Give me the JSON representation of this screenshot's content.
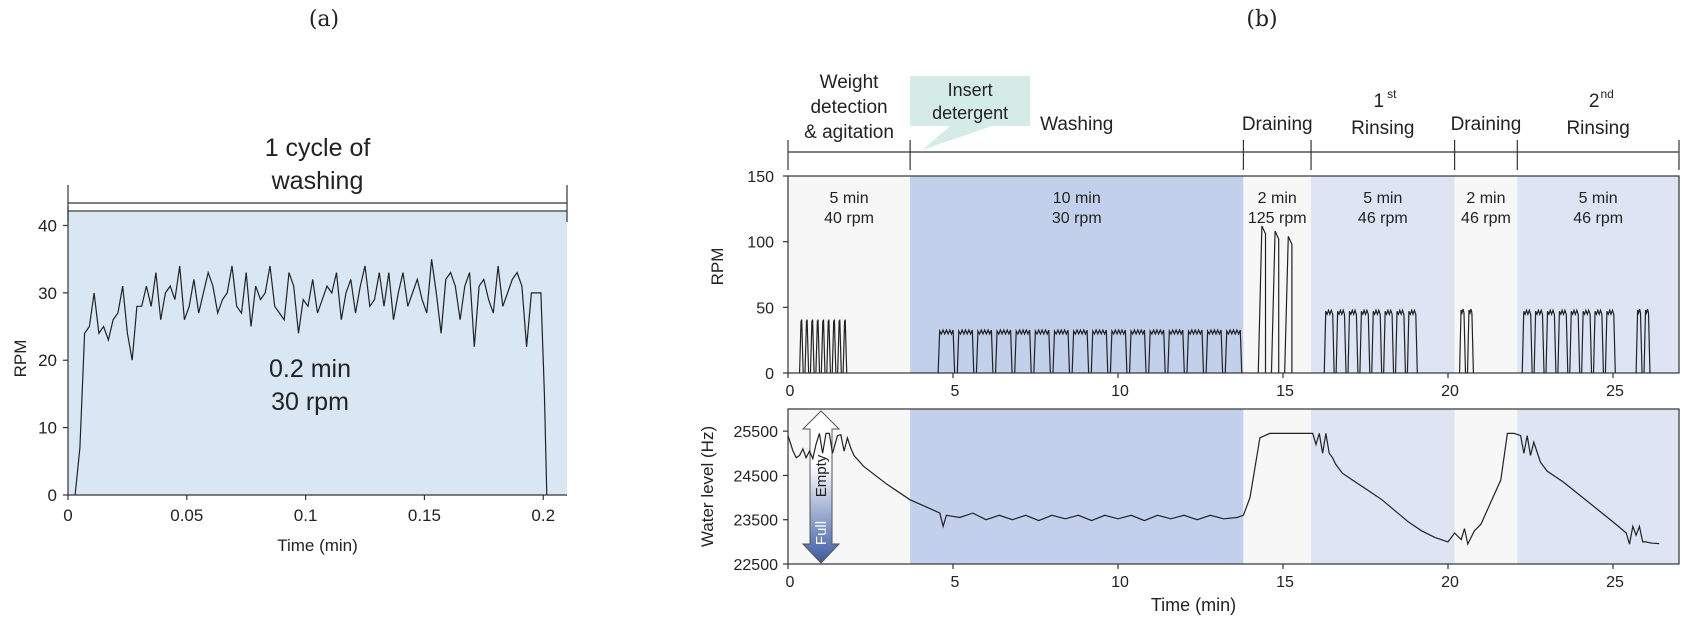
{
  "panel_a_label": "(a)",
  "panel_b_label": "(b)",
  "colors": {
    "panel_a_bg": "#d9e7f5",
    "washing_bg": "#c3d0ec",
    "rinsing_bg": "#dde4f4",
    "plain_bg": "#f7f7f7",
    "callout": "#d5ebe6",
    "arrow_top": "#ffffff",
    "arrow_bottom": "#3a5aa0"
  },
  "chart_data": [
    {
      "type": "line",
      "xlabel": "Time (min)",
      "ylabel": "RPM",
      "xlim": [
        0,
        0.21
      ],
      "ylim": [
        0,
        42
      ],
      "xticks": [
        "0",
        "0.05",
        "0.1",
        "0.15",
        "0.2"
      ],
      "xtick_values": [
        0,
        0.05,
        0.1,
        0.15,
        0.2
      ],
      "yticks": [
        "0",
        "10",
        "20",
        "30",
        "40"
      ],
      "ytick_values": [
        0,
        10,
        20,
        30,
        40
      ],
      "bracket_label": [
        "1 cycle of",
        "washing"
      ],
      "center_label": [
        "0.2 min",
        "30 rpm"
      ],
      "series": [
        {
          "x": [
            0.003,
            0.005,
            0.007,
            0.009,
            0.011,
            0.013,
            0.015,
            0.017,
            0.019,
            0.021,
            0.023,
            0.025,
            0.027,
            0.029,
            0.031,
            0.033,
            0.035,
            0.037,
            0.039,
            0.041,
            0.043,
            0.045,
            0.047,
            0.049,
            0.051,
            0.053,
            0.055,
            0.057,
            0.059,
            0.061,
            0.063,
            0.065,
            0.067,
            0.069,
            0.071,
            0.073,
            0.075,
            0.077,
            0.079,
            0.081,
            0.083,
            0.085,
            0.087,
            0.089,
            0.091,
            0.093,
            0.095,
            0.097,
            0.099,
            0.101,
            0.103,
            0.105,
            0.107,
            0.109,
            0.111,
            0.113,
            0.115,
            0.117,
            0.119,
            0.121,
            0.123,
            0.125,
            0.127,
            0.129,
            0.131,
            0.133,
            0.135,
            0.137,
            0.139,
            0.141,
            0.143,
            0.145,
            0.147,
            0.149,
            0.151,
            0.153,
            0.155,
            0.157,
            0.159,
            0.161,
            0.163,
            0.165,
            0.167,
            0.169,
            0.171,
            0.173,
            0.175,
            0.177,
            0.179,
            0.181,
            0.183,
            0.185,
            0.187,
            0.189,
            0.191,
            0.193,
            0.195,
            0.197,
            0.199,
            0.2005,
            0.2015
          ],
          "y": [
            0,
            7,
            24,
            25,
            30,
            24,
            25,
            23,
            26,
            27,
            31,
            24,
            20,
            28,
            28,
            31,
            28,
            33,
            26,
            30,
            31,
            29,
            34,
            26,
            28,
            32,
            27,
            30,
            33,
            31,
            27,
            29,
            30,
            34,
            28,
            27,
            33,
            25,
            31,
            29,
            30,
            34,
            28,
            27,
            26,
            33,
            31,
            24,
            29,
            28,
            32,
            27,
            29,
            31,
            30,
            33,
            26,
            30,
            32,
            27,
            31,
            34,
            28,
            29,
            33,
            28,
            33,
            26,
            30,
            33,
            28,
            30,
            32,
            29,
            27,
            35,
            30,
            24,
            32,
            33,
            31,
            26,
            31,
            33,
            22,
            31,
            32,
            29,
            27,
            34,
            28,
            30,
            32,
            33,
            31,
            22,
            30,
            30,
            30,
            15,
            0
          ]
        }
      ]
    },
    {
      "type": "bar",
      "ylabel": "RPM",
      "xlim": [
        0,
        27
      ],
      "ylim": [
        0,
        150
      ],
      "xticks": [
        "0",
        "5",
        "10",
        "15",
        "20",
        "25"
      ],
      "xtick_values": [
        0,
        5,
        10,
        15,
        20,
        25
      ],
      "yticks": [
        "0",
        "50",
        "100",
        "150"
      ],
      "ytick_values": [
        0,
        50,
        100,
        150
      ],
      "phases": [
        {
          "name": [
            "Weight",
            "detection",
            "& agitation"
          ],
          "start": 0,
          "end": 3.7,
          "shade": "plain",
          "duration": "5 min",
          "speed": "40 rpm"
        },
        {
          "name": [
            "Washing"
          ],
          "start": 3.7,
          "end": 13.8,
          "shade": "washing",
          "duration": "10 min",
          "speed": "30 rpm"
        },
        {
          "name": [
            "Draining"
          ],
          "start": 13.8,
          "end": 15.85,
          "shade": "plain",
          "duration": "2 min",
          "speed": "125 rpm"
        },
        {
          "name": [
            "1",
            "Rinsing"
          ],
          "sup": "st",
          "start": 15.85,
          "end": 20.2,
          "shade": "rinsing",
          "duration": "5 min",
          "speed": "46 rpm"
        },
        {
          "name": [
            "Draining"
          ],
          "start": 20.2,
          "end": 22.1,
          "shade": "plain",
          "duration": "2 min",
          "speed": "46 rpm"
        },
        {
          "name": [
            "2",
            "Rinsing"
          ],
          "sup": "nd",
          "start": 22.1,
          "end": 27,
          "shade": "rinsing",
          "duration": "5 min",
          "speed": "46 rpm"
        }
      ],
      "callout": [
        "Insert",
        "detergent"
      ],
      "pulse_groups": [
        {
          "start": 0.35,
          "count": 9,
          "width": 0.11,
          "gap": 0.055,
          "height": 40
        },
        {
          "start": 4.55,
          "count": 16,
          "width": 0.5,
          "gap": 0.08,
          "height": 32
        },
        {
          "start": 14.25,
          "count": 3,
          "width": 0.22,
          "gap": 0.18,
          "height": 112,
          "spike": true
        },
        {
          "start": 16.25,
          "count": 8,
          "width": 0.3,
          "gap": 0.06,
          "height": 47
        },
        {
          "start": 20.35,
          "count": 2,
          "width": 0.18,
          "gap": 0.06,
          "height": 48
        },
        {
          "start": 22.25,
          "count": 8,
          "width": 0.3,
          "gap": 0.06,
          "height": 47
        },
        {
          "start": 25.7,
          "count": 2,
          "width": 0.18,
          "gap": 0.06,
          "height": 48
        }
      ]
    },
    {
      "type": "line",
      "xlabel": "Time (min)",
      "ylabel": "Water level (Hz)",
      "xlim": [
        0,
        27
      ],
      "ylim": [
        22500,
        26000
      ],
      "xticks": [
        "0",
        "5",
        "10",
        "15",
        "20",
        "25"
      ],
      "xtick_values": [
        0,
        5,
        10,
        15,
        20,
        25
      ],
      "yticks": [
        "22500",
        "23500",
        "24500",
        "25500"
      ],
      "ytick_values": [
        22500,
        23500,
        24500,
        25500
      ],
      "arrow_top_label": "Empty",
      "arrow_bottom_label": "Full",
      "series": [
        {
          "x": [
            0,
            0.15,
            0.25,
            0.35,
            0.45,
            0.55,
            0.65,
            0.75,
            0.85,
            0.95,
            1.05,
            1.15,
            1.25,
            1.35,
            1.5,
            1.6,
            1.7,
            1.8,
            1.9,
            2.0,
            2.3,
            3.0,
            3.7,
            4.3,
            4.6,
            4.7,
            4.8,
            5.2,
            5.6,
            6.0,
            6.4,
            6.8,
            7.2,
            7.6,
            8.0,
            8.4,
            8.8,
            9.2,
            9.6,
            10.0,
            10.4,
            10.8,
            11.2,
            11.6,
            12.0,
            12.4,
            12.8,
            13.2,
            13.6,
            13.8,
            14.0,
            14.3,
            14.6,
            15.0,
            15.4,
            15.8,
            15.9,
            16.0,
            16.1,
            16.2,
            16.3,
            16.4,
            16.5,
            16.6,
            16.8,
            17.2,
            17.6,
            18.0,
            18.4,
            18.8,
            19.2,
            19.6,
            20.0,
            20.2,
            20.4,
            20.5,
            20.6,
            20.7,
            20.8,
            21.0,
            21.3,
            21.6,
            21.8,
            21.9,
            22.0,
            22.2,
            22.3,
            22.4,
            22.5,
            22.6,
            22.8,
            23.0,
            23.5,
            24.0,
            24.5,
            25.0,
            25.4,
            25.5,
            25.6,
            25.7,
            25.8,
            25.9,
            26.0,
            26.1,
            26.2,
            26.4
          ],
          "y": [
            25400,
            25050,
            24900,
            24950,
            25100,
            24900,
            25050,
            24880,
            25200,
            25450,
            25000,
            25450,
            25450,
            25000,
            25400,
            25420,
            25050,
            25350,
            25120,
            24950,
            24700,
            24300,
            23950,
            23750,
            23650,
            23350,
            23600,
            23550,
            23650,
            23500,
            23600,
            23500,
            23600,
            23480,
            23600,
            23520,
            23600,
            23480,
            23600,
            23520,
            23600,
            23480,
            23600,
            23520,
            23600,
            23500,
            23600,
            23520,
            23550,
            23600,
            24000,
            25350,
            25450,
            25450,
            25450,
            25450,
            25450,
            25200,
            25450,
            25000,
            25450,
            25000,
            24900,
            24750,
            24550,
            24350,
            24150,
            23950,
            23700,
            23450,
            23250,
            23100,
            23000,
            23200,
            23050,
            23300,
            22950,
            23100,
            23250,
            23400,
            23900,
            24400,
            25450,
            25450,
            25450,
            25400,
            25000,
            25400,
            24950,
            25250,
            24800,
            24600,
            24350,
            24050,
            23750,
            23450,
            23200,
            22950,
            23350,
            23150,
            23350,
            23000,
            23000,
            22980,
            22970,
            22960
          ]
        }
      ]
    }
  ]
}
